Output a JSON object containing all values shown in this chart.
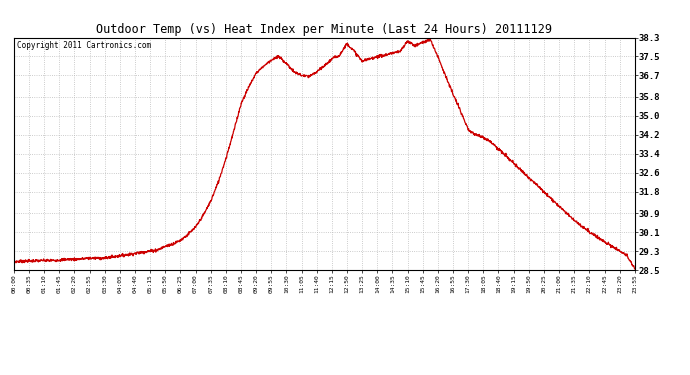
{
  "title": "Outdoor Temp (vs) Heat Index per Minute (Last 24 Hours) 20111129",
  "copyright": "Copyright 2011 Cartronics.com",
  "line_color": "#cc0000",
  "background_color": "#ffffff",
  "grid_color": "#bbbbbb",
  "yticks": [
    28.5,
    29.3,
    30.1,
    30.9,
    31.8,
    32.6,
    33.4,
    34.2,
    35.0,
    35.8,
    36.7,
    37.5,
    38.3
  ],
  "ylim": [
    28.5,
    38.3
  ],
  "xtick_labels": [
    "00:00",
    "00:35",
    "01:10",
    "01:45",
    "02:20",
    "02:55",
    "03:30",
    "04:05",
    "04:40",
    "05:15",
    "05:50",
    "06:25",
    "07:00",
    "07:35",
    "08:10",
    "08:45",
    "09:20",
    "09:55",
    "10:30",
    "11:05",
    "11:40",
    "12:15",
    "12:50",
    "13:25",
    "14:00",
    "14:35",
    "15:10",
    "15:45",
    "16:20",
    "16:55",
    "17:30",
    "18:05",
    "18:40",
    "19:15",
    "19:50",
    "20:25",
    "21:00",
    "21:35",
    "22:10",
    "22:45",
    "23:20",
    "23:55"
  ],
  "curve_x": [
    0,
    0.5,
    1,
    1.5,
    2,
    2.5,
    3,
    3.5,
    4,
    4.5,
    5,
    5.5,
    6,
    6.5,
    7,
    7.5,
    8,
    8.5,
    9,
    9.5,
    10,
    10.5,
    11,
    11.5,
    12,
    12.5,
    13,
    13.5,
    14,
    14.5,
    15,
    15.5,
    16,
    16.5,
    17,
    17.5,
    18,
    18.5,
    19,
    19.5,
    20,
    20.5,
    21,
    21.5,
    22,
    22.5,
    23,
    23.5,
    24,
    24.5,
    25,
    25.5,
    26,
    26.5,
    27,
    27.5,
    28,
    28.5,
    29,
    29.5,
    30,
    30.5,
    31,
    31.5,
    32,
    32.5,
    33,
    33.5,
    34,
    34.5,
    35,
    35.5,
    36,
    36.5,
    37,
    37.5,
    38,
    38.5,
    39,
    39.5,
    40,
    40.5,
    41
  ],
  "curve_y": [
    28.85,
    28.87,
    28.88,
    28.89,
    28.9,
    28.9,
    28.92,
    28.95,
    28.95,
    28.97,
    29.0,
    29.0,
    29.0,
    29.05,
    29.1,
    29.15,
    29.2,
    29.25,
    29.3,
    29.35,
    29.5,
    29.6,
    29.75,
    30.0,
    30.3,
    30.8,
    31.4,
    32.2,
    33.2,
    34.3,
    35.5,
    36.2,
    36.8,
    37.1,
    37.35,
    37.5,
    37.2,
    36.85,
    36.7,
    36.65,
    36.85,
    37.1,
    37.4,
    37.55,
    38.05,
    37.7,
    37.3,
    37.4,
    37.5,
    37.55,
    37.65,
    37.7,
    38.15,
    37.95,
    38.1,
    38.2,
    37.5,
    36.7,
    35.9,
    35.2,
    34.4,
    34.2,
    34.1,
    33.9,
    33.6,
    33.3,
    33.0,
    32.7,
    32.4,
    32.1,
    31.8,
    31.5,
    31.2,
    30.9,
    30.6,
    30.35,
    30.1,
    29.9,
    29.7,
    29.5,
    29.3,
    29.1,
    28.55
  ]
}
